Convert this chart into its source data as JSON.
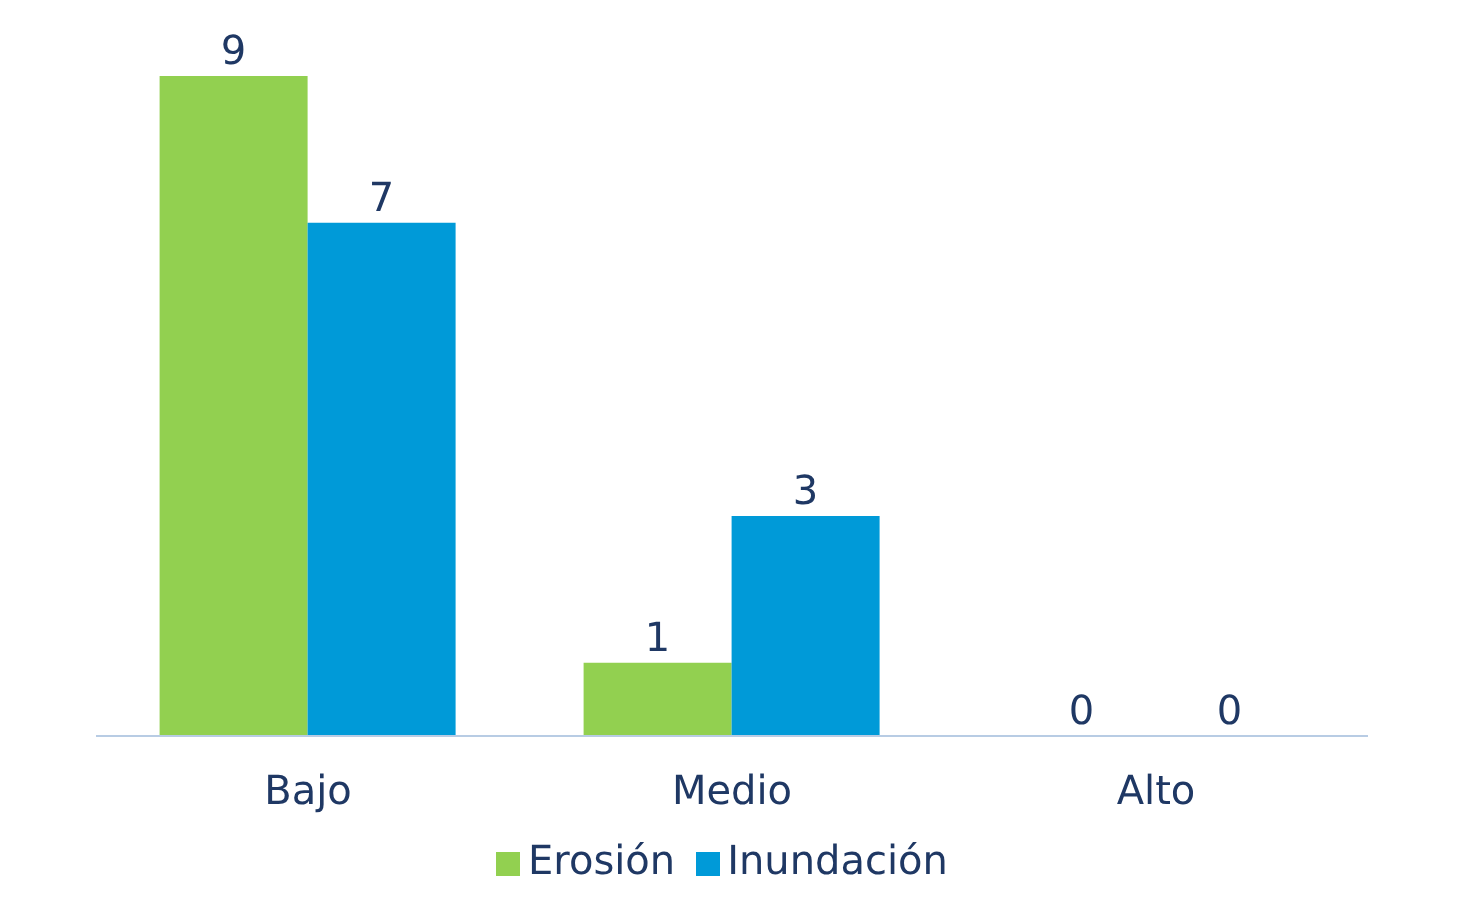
{
  "chart_data": {
    "type": "bar",
    "categories": [
      "Bajo",
      "Medio",
      "Alto"
    ],
    "series": [
      {
        "name": "Erosión",
        "color": "#92d050",
        "values": [
          9,
          1,
          0
        ]
      },
      {
        "name": "Inundación",
        "color": "#009ad8",
        "values": [
          7,
          3,
          0
        ]
      }
    ],
    "data_labels": true,
    "legend": "bottom",
    "grid": false
  }
}
